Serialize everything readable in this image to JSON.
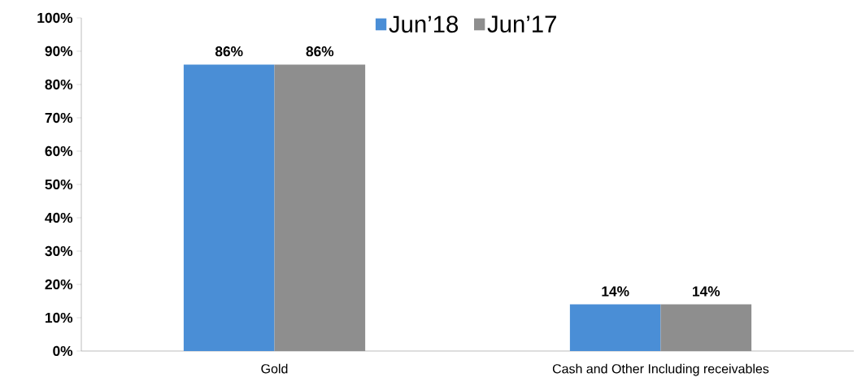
{
  "chart_data": {
    "type": "bar",
    "categories": [
      "Gold",
      "Cash and Other Including receivables"
    ],
    "series": [
      {
        "name": "Jun’18",
        "color": "#4a8ed6",
        "values": [
          86,
          14
        ],
        "value_labels": [
          "86%",
          "14%"
        ]
      },
      {
        "name": "Jun’17",
        "color": "#8e8e8e",
        "values": [
          86,
          14
        ],
        "value_labels": [
          "86%",
          "14%"
        ]
      }
    ],
    "ylim": [
      0,
      100
    ],
    "yticks": [
      {
        "value": 0,
        "label": "0%"
      },
      {
        "value": 10,
        "label": "10%"
      },
      {
        "value": 20,
        "label": "20%"
      },
      {
        "value": 30,
        "label": "30%"
      },
      {
        "value": 40,
        "label": "40%"
      },
      {
        "value": 50,
        "label": "50%"
      },
      {
        "value": 60,
        "label": "60%"
      },
      {
        "value": 70,
        "label": "70%"
      },
      {
        "value": 80,
        "label": "80%"
      },
      {
        "value": 90,
        "label": "90%"
      },
      {
        "value": 100,
        "label": "100%"
      }
    ],
    "grid": false,
    "legend": "top"
  }
}
